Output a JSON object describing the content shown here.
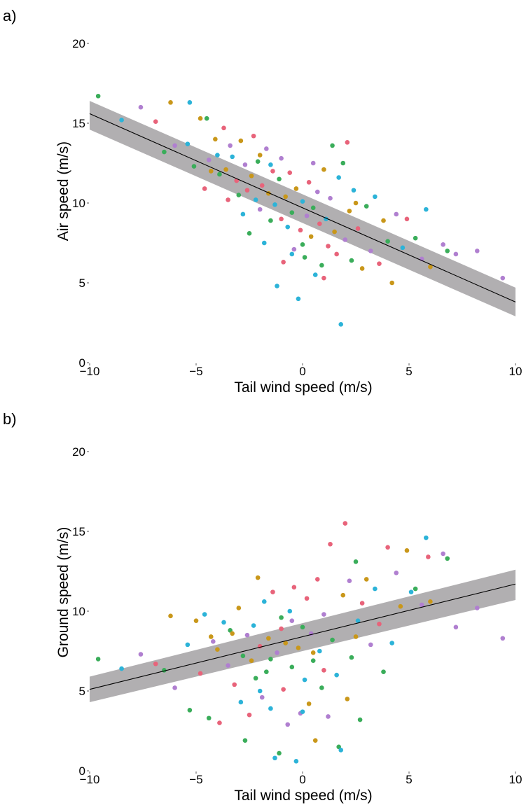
{
  "chart_data": [
    {
      "type": "scatter",
      "panel_label": "a)",
      "xlabel": "Tail wind speed (m/s)",
      "ylabel": "Air speed (m/s)",
      "xlim": [
        -10,
        10
      ],
      "ylim": [
        0,
        20
      ],
      "x_ticks": [
        "−10",
        "−5",
        "0",
        "5",
        "10"
      ],
      "x_tick_values": [
        -10,
        -5,
        0,
        5,
        10
      ],
      "y_ticks": [
        "0",
        "5",
        "10",
        "15",
        "20"
      ],
      "y_tick_values": [
        0,
        5,
        10,
        15,
        20
      ],
      "grid": false,
      "fit": {
        "x": [
          -10,
          10
        ],
        "y": [
          15.6,
          3.8
        ],
        "ci_lower": [
          14.6,
          2.9
        ],
        "ci_upper": [
          16.4,
          4.7
        ]
      },
      "points": [
        {
          "x": -9.6,
          "y": 16.7,
          "c": 2
        },
        {
          "x": -8.5,
          "y": 15.2,
          "c": 3
        },
        {
          "x": -7.6,
          "y": 16.0,
          "c": 4
        },
        {
          "x": -6.9,
          "y": 15.1,
          "c": 0
        },
        {
          "x": -6.5,
          "y": 13.2,
          "c": 2
        },
        {
          "x": -6.2,
          "y": 16.3,
          "c": 1
        },
        {
          "x": -6.0,
          "y": 13.6,
          "c": 4
        },
        {
          "x": -5.4,
          "y": 13.7,
          "c": 3
        },
        {
          "x": -5.1,
          "y": 12.3,
          "c": 2
        },
        {
          "x": -5.3,
          "y": 16.3,
          "c": 3
        },
        {
          "x": -4.8,
          "y": 15.3,
          "c": 1
        },
        {
          "x": -4.6,
          "y": 10.9,
          "c": 0
        },
        {
          "x": -4.5,
          "y": 15.3,
          "c": 2
        },
        {
          "x": -4.4,
          "y": 12.7,
          "c": 4
        },
        {
          "x": -4.1,
          "y": 14.0,
          "c": 1
        },
        {
          "x": -4.0,
          "y": 13.0,
          "c": 3
        },
        {
          "x": -3.9,
          "y": 11.8,
          "c": 2
        },
        {
          "x": -3.7,
          "y": 14.7,
          "c": 0
        },
        {
          "x": -3.6,
          "y": 12.1,
          "c": 1
        },
        {
          "x": -3.4,
          "y": 13.6,
          "c": 4
        },
        {
          "x": -3.3,
          "y": 12.9,
          "c": 3
        },
        {
          "x": -3.1,
          "y": 11.4,
          "c": 0
        },
        {
          "x": -3.0,
          "y": 10.5,
          "c": 2
        },
        {
          "x": -2.9,
          "y": 13.9,
          "c": 1
        },
        {
          "x": -2.8,
          "y": 9.3,
          "c": 3
        },
        {
          "x": -2.7,
          "y": 12.4,
          "c": 4
        },
        {
          "x": -2.6,
          "y": 10.8,
          "c": 0
        },
        {
          "x": -2.5,
          "y": 8.1,
          "c": 2
        },
        {
          "x": -2.4,
          "y": 11.7,
          "c": 1
        },
        {
          "x": -2.3,
          "y": 14.2,
          "c": 0
        },
        {
          "x": -2.2,
          "y": 10.2,
          "c": 3
        },
        {
          "x": -2.1,
          "y": 12.6,
          "c": 2
        },
        {
          "x": -2.0,
          "y": 9.6,
          "c": 4
        },
        {
          "x": -1.9,
          "y": 11.1,
          "c": 0
        },
        {
          "x": -1.8,
          "y": 7.5,
          "c": 3
        },
        {
          "x": -1.7,
          "y": 13.4,
          "c": 4
        },
        {
          "x": -1.6,
          "y": 10.6,
          "c": 1
        },
        {
          "x": -1.5,
          "y": 8.9,
          "c": 2
        },
        {
          "x": -1.4,
          "y": 12.0,
          "c": 0
        },
        {
          "x": -1.3,
          "y": 9.9,
          "c": 3
        },
        {
          "x": -1.2,
          "y": 4.8,
          "c": 3
        },
        {
          "x": -1.1,
          "y": 11.5,
          "c": 2
        },
        {
          "x": -1.0,
          "y": 12.8,
          "c": 4
        },
        {
          "x": -0.9,
          "y": 6.3,
          "c": 0
        },
        {
          "x": -0.8,
          "y": 10.4,
          "c": 1
        },
        {
          "x": -0.7,
          "y": 8.5,
          "c": 3
        },
        {
          "x": -0.6,
          "y": 11.9,
          "c": 0
        },
        {
          "x": -0.5,
          "y": 9.4,
          "c": 2
        },
        {
          "x": -0.4,
          "y": 7.1,
          "c": 4
        },
        {
          "x": -0.3,
          "y": 10.9,
          "c": 1
        },
        {
          "x": -0.2,
          "y": 4.0,
          "c": 3
        },
        {
          "x": -0.1,
          "y": 8.3,
          "c": 0
        },
        {
          "x": 0.0,
          "y": 10.1,
          "c": 3
        },
        {
          "x": 0.1,
          "y": 6.6,
          "c": 2
        },
        {
          "x": 0.2,
          "y": 9.2,
          "c": 4
        },
        {
          "x": 0.3,
          "y": 11.3,
          "c": 0
        },
        {
          "x": 0.4,
          "y": 7.9,
          "c": 1
        },
        {
          "x": 0.5,
          "y": 9.7,
          "c": 2
        },
        {
          "x": 0.6,
          "y": 5.5,
          "c": 3
        },
        {
          "x": 0.7,
          "y": 10.7,
          "c": 4
        },
        {
          "x": 0.8,
          "y": 8.7,
          "c": 0
        },
        {
          "x": 0.9,
          "y": 6.1,
          "c": 2
        },
        {
          "x": 1.0,
          "y": 12.1,
          "c": 1
        },
        {
          "x": 1.1,
          "y": 9.0,
          "c": 3
        },
        {
          "x": 1.2,
          "y": 7.3,
          "c": 0
        },
        {
          "x": 1.3,
          "y": 10.3,
          "c": 4
        },
        {
          "x": 1.4,
          "y": 13.6,
          "c": 2
        },
        {
          "x": 1.5,
          "y": 8.2,
          "c": 1
        },
        {
          "x": 1.6,
          "y": 6.8,
          "c": 0
        },
        {
          "x": 1.7,
          "y": 11.6,
          "c": 3
        },
        {
          "x": 1.8,
          "y": 2.4,
          "c": 3
        },
        {
          "x": 1.9,
          "y": 12.5,
          "c": 2
        },
        {
          "x": 2.0,
          "y": 7.7,
          "c": 4
        },
        {
          "x": 2.1,
          "y": 13.8,
          "c": 0
        },
        {
          "x": 2.2,
          "y": 9.5,
          "c": 1
        },
        {
          "x": 2.3,
          "y": 6.4,
          "c": 2
        },
        {
          "x": 2.4,
          "y": 10.8,
          "c": 3
        },
        {
          "x": 2.6,
          "y": 8.4,
          "c": 0
        },
        {
          "x": 2.8,
          "y": 5.9,
          "c": 1
        },
        {
          "x": 3.0,
          "y": 9.8,
          "c": 2
        },
        {
          "x": 3.2,
          "y": 7.0,
          "c": 4
        },
        {
          "x": 3.4,
          "y": 10.4,
          "c": 3
        },
        {
          "x": 3.6,
          "y": 6.2,
          "c": 0
        },
        {
          "x": 3.8,
          "y": 8.9,
          "c": 1
        },
        {
          "x": 4.0,
          "y": 7.6,
          "c": 2
        },
        {
          "x": 4.2,
          "y": 5.0,
          "c": 1
        },
        {
          "x": 4.4,
          "y": 9.3,
          "c": 4
        },
        {
          "x": 4.7,
          "y": 7.2,
          "c": 3
        },
        {
          "x": 4.9,
          "y": 9.0,
          "c": 0
        },
        {
          "x": 5.3,
          "y": 7.8,
          "c": 2
        },
        {
          "x": 5.6,
          "y": 6.5,
          "c": 4
        },
        {
          "x": 5.8,
          "y": 9.6,
          "c": 3
        },
        {
          "x": 6.0,
          "y": 6.0,
          "c": 1
        },
        {
          "x": 6.6,
          "y": 7.4,
          "c": 4
        },
        {
          "x": 6.8,
          "y": 7.0,
          "c": 2
        },
        {
          "x": 7.2,
          "y": 6.8,
          "c": 4
        },
        {
          "x": 8.2,
          "y": 7.0,
          "c": 4
        },
        {
          "x": 9.4,
          "y": 5.3,
          "c": 4
        },
        {
          "x": -3.5,
          "y": 10.2,
          "c": 0
        },
        {
          "x": -2.0,
          "y": 13.0,
          "c": 1
        },
        {
          "x": -1.0,
          "y": 9.0,
          "c": 0
        },
        {
          "x": 0.5,
          "y": 12.5,
          "c": 4
        },
        {
          "x": 1.0,
          "y": 5.3,
          "c": 0
        },
        {
          "x": -0.5,
          "y": 6.8,
          "c": 3
        },
        {
          "x": 2.5,
          "y": 10.0,
          "c": 1
        },
        {
          "x": -1.5,
          "y": 12.4,
          "c": 3
        },
        {
          "x": 0.0,
          "y": 7.4,
          "c": 2
        },
        {
          "x": -4.3,
          "y": 12.0,
          "c": 1
        }
      ]
    },
    {
      "type": "scatter",
      "panel_label": "b)",
      "xlabel": "Tail wind speed (m/s)",
      "ylabel": "Ground speed (m/s)",
      "xlim": [
        -10,
        10
      ],
      "ylim": [
        0,
        20
      ],
      "x_ticks": [
        "−10",
        "−5",
        "0",
        "5",
        "10"
      ],
      "x_tick_values": [
        -10,
        -5,
        0,
        5,
        10
      ],
      "y_ticks": [
        "0",
        "5",
        "10",
        "15",
        "20"
      ],
      "y_tick_values": [
        0,
        5,
        10,
        15,
        20
      ],
      "grid": false,
      "fit": {
        "x": [
          -10,
          10
        ],
        "y": [
          5.1,
          11.7
        ],
        "ci_lower": [
          4.3,
          10.7
        ],
        "ci_upper": [
          5.9,
          12.6
        ]
      },
      "points": [
        {
          "x": -9.6,
          "y": 7.0,
          "c": 2
        },
        {
          "x": -8.5,
          "y": 6.4,
          "c": 3
        },
        {
          "x": -7.6,
          "y": 7.3,
          "c": 4
        },
        {
          "x": -6.9,
          "y": 6.7,
          "c": 0
        },
        {
          "x": -6.5,
          "y": 6.3,
          "c": 2
        },
        {
          "x": -6.2,
          "y": 9.7,
          "c": 1
        },
        {
          "x": -6.0,
          "y": 5.2,
          "c": 4
        },
        {
          "x": -5.4,
          "y": 7.9,
          "c": 3
        },
        {
          "x": -5.3,
          "y": 3.8,
          "c": 2
        },
        {
          "x": -5.0,
          "y": 9.4,
          "c": 1
        },
        {
          "x": -4.8,
          "y": 6.1,
          "c": 0
        },
        {
          "x": -4.6,
          "y": 9.8,
          "c": 3
        },
        {
          "x": -4.4,
          "y": 3.3,
          "c": 2
        },
        {
          "x": -4.2,
          "y": 8.1,
          "c": 4
        },
        {
          "x": -4.0,
          "y": 7.6,
          "c": 1
        },
        {
          "x": -3.9,
          "y": 3.0,
          "c": 0
        },
        {
          "x": -3.7,
          "y": 9.3,
          "c": 3
        },
        {
          "x": -3.5,
          "y": 6.6,
          "c": 4
        },
        {
          "x": -3.4,
          "y": 8.8,
          "c": 2
        },
        {
          "x": -3.2,
          "y": 5.4,
          "c": 0
        },
        {
          "x": -3.0,
          "y": 10.2,
          "c": 1
        },
        {
          "x": -2.9,
          "y": 4.3,
          "c": 3
        },
        {
          "x": -2.8,
          "y": 7.2,
          "c": 2
        },
        {
          "x": -2.7,
          "y": 1.9,
          "c": 2
        },
        {
          "x": -2.6,
          "y": 8.5,
          "c": 4
        },
        {
          "x": -2.5,
          "y": 3.5,
          "c": 0
        },
        {
          "x": -2.4,
          "y": 6.9,
          "c": 1
        },
        {
          "x": -2.3,
          "y": 9.1,
          "c": 3
        },
        {
          "x": -2.2,
          "y": 5.8,
          "c": 2
        },
        {
          "x": -2.1,
          "y": 12.1,
          "c": 1
        },
        {
          "x": -2.0,
          "y": 7.8,
          "c": 0
        },
        {
          "x": -1.9,
          "y": 4.6,
          "c": 4
        },
        {
          "x": -1.8,
          "y": 10.6,
          "c": 3
        },
        {
          "x": -1.7,
          "y": 6.2,
          "c": 2
        },
        {
          "x": -1.6,
          "y": 8.3,
          "c": 1
        },
        {
          "x": -1.5,
          "y": 3.9,
          "c": 3
        },
        {
          "x": -1.4,
          "y": 11.2,
          "c": 0
        },
        {
          "x": -1.3,
          "y": 0.8,
          "c": 3
        },
        {
          "x": -1.2,
          "y": 7.4,
          "c": 4
        },
        {
          "x": -1.1,
          "y": 1.1,
          "c": 2
        },
        {
          "x": -1.0,
          "y": 9.6,
          "c": 2
        },
        {
          "x": -0.9,
          "y": 5.1,
          "c": 0
        },
        {
          "x": -0.8,
          "y": 8.0,
          "c": 1
        },
        {
          "x": -0.7,
          "y": 2.9,
          "c": 4
        },
        {
          "x": -0.6,
          "y": 10.0,
          "c": 3
        },
        {
          "x": -0.5,
          "y": 6.5,
          "c": 2
        },
        {
          "x": -0.4,
          "y": 11.5,
          "c": 0
        },
        {
          "x": -0.3,
          "y": 0.6,
          "c": 3
        },
        {
          "x": -0.2,
          "y": 7.7,
          "c": 1
        },
        {
          "x": -0.1,
          "y": 3.6,
          "c": 4
        },
        {
          "x": 0.0,
          "y": 9.0,
          "c": 2
        },
        {
          "x": 0.1,
          "y": 5.7,
          "c": 3
        },
        {
          "x": 0.2,
          "y": 10.8,
          "c": 0
        },
        {
          "x": 0.3,
          "y": 4.2,
          "c": 1
        },
        {
          "x": 0.4,
          "y": 8.6,
          "c": 4
        },
        {
          "x": 0.5,
          "y": 6.9,
          "c": 2
        },
        {
          "x": 0.6,
          "y": 1.9,
          "c": 1
        },
        {
          "x": 0.7,
          "y": 12.0,
          "c": 0
        },
        {
          "x": 0.8,
          "y": 7.5,
          "c": 3
        },
        {
          "x": 0.9,
          "y": 5.2,
          "c": 2
        },
        {
          "x": 1.0,
          "y": 9.8,
          "c": 4
        },
        {
          "x": 1.2,
          "y": 3.4,
          "c": 4
        },
        {
          "x": 1.3,
          "y": 14.2,
          "c": 0
        },
        {
          "x": 1.4,
          "y": 8.2,
          "c": 2
        },
        {
          "x": 1.6,
          "y": 6.0,
          "c": 3
        },
        {
          "x": 1.7,
          "y": 1.5,
          "c": 2
        },
        {
          "x": 1.8,
          "y": 1.3,
          "c": 3
        },
        {
          "x": 1.9,
          "y": 11.0,
          "c": 1
        },
        {
          "x": 2.0,
          "y": 15.5,
          "c": 0
        },
        {
          "x": 2.1,
          "y": 4.5,
          "c": 1
        },
        {
          "x": 2.2,
          "y": 11.9,
          "c": 4
        },
        {
          "x": 2.3,
          "y": 7.1,
          "c": 2
        },
        {
          "x": 2.5,
          "y": 13.1,
          "c": 2
        },
        {
          "x": 2.6,
          "y": 9.4,
          "c": 3
        },
        {
          "x": 2.7,
          "y": 3.2,
          "c": 2
        },
        {
          "x": 2.8,
          "y": 10.5,
          "c": 0
        },
        {
          "x": 3.0,
          "y": 12.0,
          "c": 1
        },
        {
          "x": 3.2,
          "y": 7.9,
          "c": 4
        },
        {
          "x": 3.4,
          "y": 11.4,
          "c": 3
        },
        {
          "x": 3.6,
          "y": 9.2,
          "c": 0
        },
        {
          "x": 3.8,
          "y": 6.2,
          "c": 2
        },
        {
          "x": 4.0,
          "y": 14.0,
          "c": 0
        },
        {
          "x": 4.2,
          "y": 8.0,
          "c": 3
        },
        {
          "x": 4.4,
          "y": 12.4,
          "c": 4
        },
        {
          "x": 4.6,
          "y": 10.3,
          "c": 1
        },
        {
          "x": 4.9,
          "y": 13.8,
          "c": 1
        },
        {
          "x": 5.1,
          "y": 11.2,
          "c": 3
        },
        {
          "x": 5.3,
          "y": 11.4,
          "c": 2
        },
        {
          "x": 5.6,
          "y": 10.4,
          "c": 4
        },
        {
          "x": 5.8,
          "y": 14.6,
          "c": 3
        },
        {
          "x": 5.9,
          "y": 13.4,
          "c": 0
        },
        {
          "x": 6.0,
          "y": 10.6,
          "c": 1
        },
        {
          "x": 6.6,
          "y": 13.6,
          "c": 4
        },
        {
          "x": 6.8,
          "y": 13.3,
          "c": 2
        },
        {
          "x": 7.2,
          "y": 9.0,
          "c": 4
        },
        {
          "x": 8.2,
          "y": 10.2,
          "c": 4
        },
        {
          "x": 9.4,
          "y": 8.3,
          "c": 4
        },
        {
          "x": -3.3,
          "y": 8.6,
          "c": 1
        },
        {
          "x": -2.0,
          "y": 5.0,
          "c": 3
        },
        {
          "x": -1.0,
          "y": 8.9,
          "c": 0
        },
        {
          "x": 0.5,
          "y": 7.4,
          "c": 1
        },
        {
          "x": 1.0,
          "y": 6.3,
          "c": 0
        },
        {
          "x": -0.5,
          "y": 9.4,
          "c": 4
        },
        {
          "x": 2.5,
          "y": 8.4,
          "c": 1
        },
        {
          "x": -1.5,
          "y": 7.0,
          "c": 2
        },
        {
          "x": 0.0,
          "y": 3.7,
          "c": 3
        },
        {
          "x": -4.3,
          "y": 8.4,
          "c": 1
        }
      ]
    }
  ],
  "palette": [
    "#e8637a",
    "#c9971a",
    "#3aad5a",
    "#2cb3d8",
    "#b07fd0"
  ],
  "fit_line_color": "#000000",
  "ci_band_color": "#a9a6a8"
}
